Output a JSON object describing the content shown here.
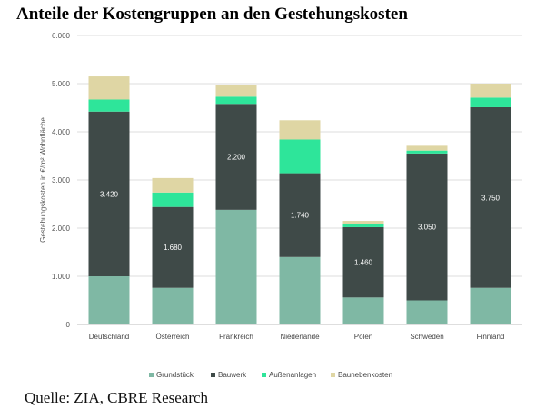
{
  "title": "Anteile der Kostengruppen an den Gestehungskosten",
  "source": "Quelle: ZIA, CBRE Research",
  "chart_data": {
    "type": "bar",
    "stacked": true,
    "title": "Anteile der Kostengruppen an den Gestehungskosten",
    "xlabel": "",
    "ylabel": "Gestehungskosten in €/m² Wohnfläche",
    "ylim": [
      0,
      6000
    ],
    "yticks": [
      0,
      1000,
      2000,
      3000,
      4000,
      5000,
      6000
    ],
    "ytick_labels": [
      "0",
      "1.000",
      "2.000",
      "3.000",
      "4.000",
      "5.000",
      "6.000"
    ],
    "grid": true,
    "legend_position": "bottom",
    "categories": [
      "Deutschland",
      "Österreich",
      "Frankreich",
      "Niederlande",
      "Polen",
      "Schweden",
      "Finnland"
    ],
    "series": [
      {
        "name": "Grundstück",
        "color": "#7fb8a4",
        "values": [
          1000,
          760,
          2380,
          1400,
          560,
          500,
          760
        ]
      },
      {
        "name": "Bauwerk",
        "color": "#3f4a48",
        "values": [
          3420,
          1680,
          2200,
          1740,
          1460,
          3050,
          3750
        ]
      },
      {
        "name": "Außenanlagen",
        "color": "#2ee59a",
        "values": [
          250,
          300,
          150,
          700,
          70,
          60,
          200
        ]
      },
      {
        "name": "Baunebenkosten",
        "color": "#dfd6a4",
        "values": [
          480,
          300,
          250,
          400,
          60,
          100,
          290
        ]
      }
    ],
    "data_labels": {
      "series": "Bauwerk",
      "labels": [
        "3.420",
        "1.680",
        "2.200",
        "1.740",
        "1.460",
        "3.050",
        "3.750"
      ]
    }
  }
}
